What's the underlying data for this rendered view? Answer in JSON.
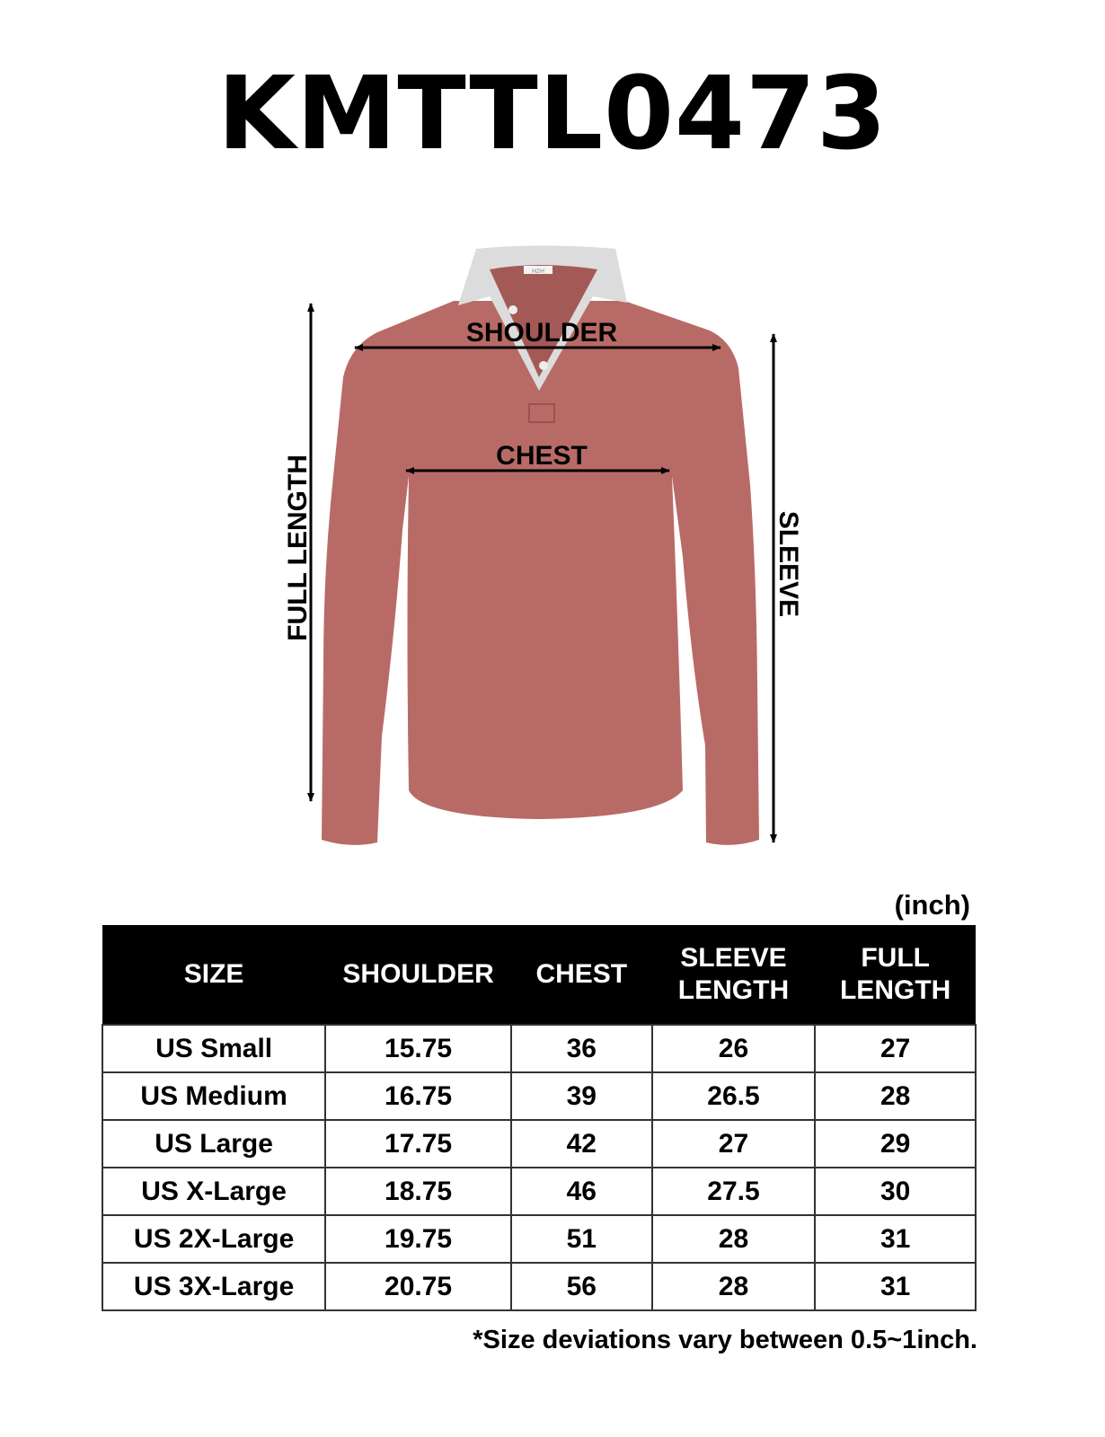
{
  "title": "KMTTL0473",
  "diagram": {
    "labels": {
      "shoulder": "SHOULDER",
      "chest": "CHEST",
      "full_length": "FULL LENGTH",
      "sleeve": "SLEEVE"
    },
    "brand_tag": "H2H",
    "shirt_color": "#b86b66",
    "collar_color": "#dcdcdc"
  },
  "table": {
    "unit": "(inch)",
    "headers": [
      [
        "SIZE"
      ],
      [
        "SHOULDER"
      ],
      [
        "CHEST"
      ],
      [
        "SLEEVE",
        "LENGTH"
      ],
      [
        "FULL",
        "LENGTH"
      ]
    ],
    "rows": [
      [
        "US Small",
        "15.75",
        "36",
        "26",
        "27"
      ],
      [
        "US Medium",
        "16.75",
        "39",
        "26.5",
        "28"
      ],
      [
        "US Large",
        "17.75",
        "42",
        "27",
        "29"
      ],
      [
        "US X-Large",
        "18.75",
        "46",
        "27.5",
        "30"
      ],
      [
        "US 2X-Large",
        "19.75",
        "51",
        "28",
        "31"
      ],
      [
        "US 3X-Large",
        "20.75",
        "56",
        "28",
        "31"
      ]
    ]
  },
  "note": "*Size deviations vary between 0.5~1inch."
}
